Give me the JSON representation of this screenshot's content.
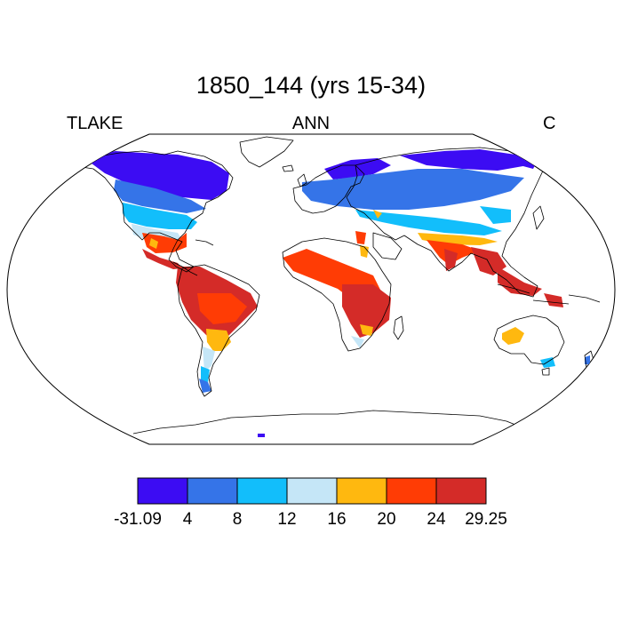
{
  "header": {
    "title": "1850_144 (yrs 15-34)",
    "left_label": "TLAKE",
    "center_label": "ANN",
    "right_label": "C"
  },
  "colorbar": {
    "labels": [
      "-31.09",
      "4",
      "8",
      "12",
      "16",
      "20",
      "24",
      "29.25"
    ],
    "colors": [
      "#3c0cf3",
      "#3574e8",
      "#12befb",
      "#c5e6f7",
      "#ffb80f",
      "#ff3c05",
      "#d42b28"
    ]
  },
  "map": {
    "projection": "robinson",
    "variable": "TLAKE",
    "season": "ANN",
    "units": "C"
  }
}
